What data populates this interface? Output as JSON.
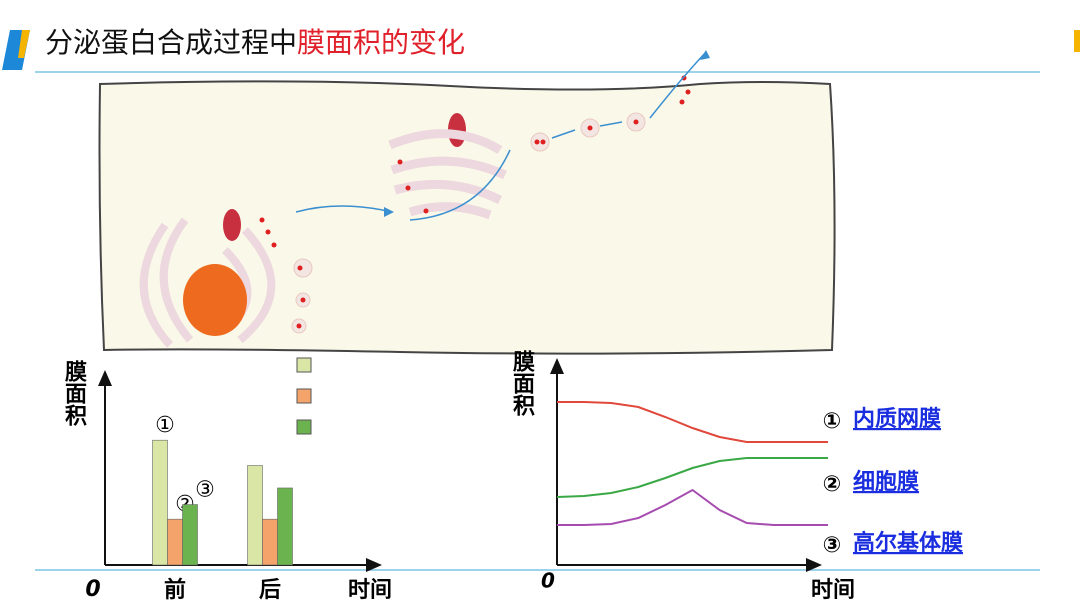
{
  "title": {
    "main": "分泌蛋白合成过程中",
    "highlight": "膜面积的变化"
  },
  "chart_data": [
    {
      "type": "bar",
      "y_label": "膜面积",
      "x_label": "时间",
      "origin_label": "0",
      "categories": [
        "前",
        "后"
      ],
      "series": [
        {
          "name": "①",
          "color": "#d9e6a6",
          "values": [
            128,
            102
          ]
        },
        {
          "name": "②",
          "color": "#f4a36a",
          "values": [
            47,
            47
          ]
        },
        {
          "name": "③",
          "color": "#6bb34f",
          "values": [
            62,
            79
          ]
        }
      ],
      "ylim": [
        0,
        200
      ]
    },
    {
      "type": "line",
      "y_label": "膜面积",
      "x_label": "时间",
      "origin_label": "0",
      "x": [
        0,
        1,
        2,
        3,
        4,
        5,
        6,
        7,
        8,
        9,
        10
      ],
      "series": [
        {
          "marker": "①",
          "name": "内质网膜",
          "color": "#e0483c",
          "values": [
            163,
            163,
            162,
            158,
            148,
            137,
            128,
            123,
            123,
            123,
            123
          ]
        },
        {
          "marker": "②",
          "name": "细胞膜",
          "color": "#3aa845",
          "values": [
            68,
            69,
            72,
            78,
            87,
            97,
            104,
            107,
            107,
            107,
            107
          ]
        },
        {
          "marker": "③",
          "name": "高尔基体膜",
          "color": "#a64bb0",
          "values": [
            40,
            40,
            41,
            47,
            60,
            75,
            55,
            42,
            40,
            40,
            40
          ]
        }
      ],
      "xlim": [
        0,
        10
      ],
      "ylim": [
        0,
        200
      ]
    }
  ]
}
